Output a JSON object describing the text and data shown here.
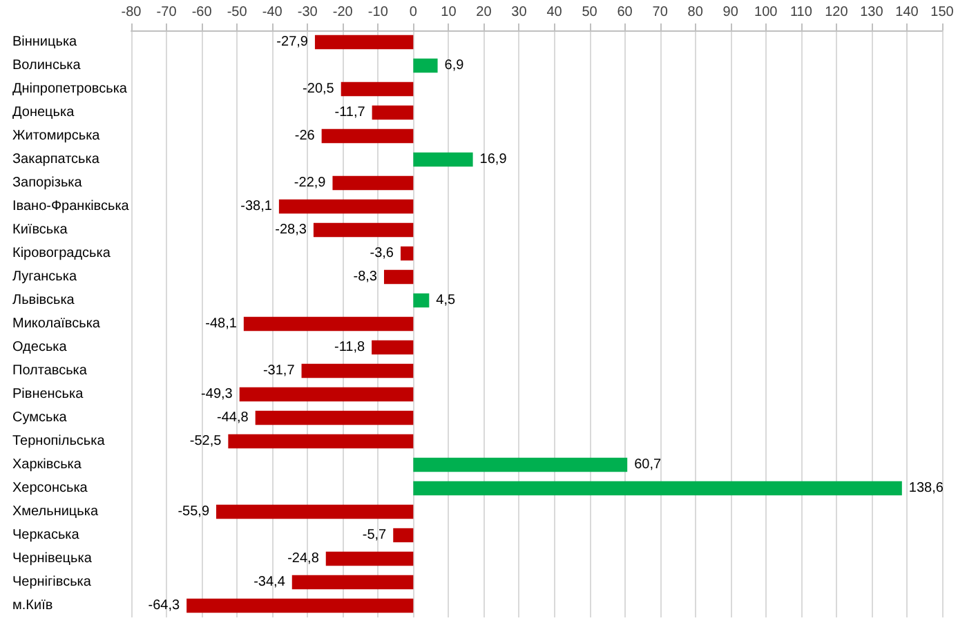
{
  "chart_data": {
    "type": "bar",
    "orientation": "horizontal",
    "categories": [
      "Вінницька",
      "Волинська",
      "Дніпропетровська",
      "Донецька",
      "Житомирська",
      "Закарпатська",
      "Запорізька",
      "Івано-Франківська",
      "Київська",
      "Кіровоградська",
      "Луганська",
      "Львівська",
      "Миколаївська",
      "Одеська",
      "Полтавська",
      "Рівненська",
      "Сумська",
      "Тернопільська",
      "Харківська",
      "Херсонська",
      "Хмельницька",
      "Черкаська",
      "Чернівецька",
      "Чернігівська",
      "м.Київ"
    ],
    "values": [
      -27.9,
      6.9,
      -20.5,
      -11.7,
      -26,
      16.9,
      -22.9,
      -38.1,
      -28.3,
      -3.6,
      -8.3,
      4.5,
      -48.1,
      -11.8,
      -31.7,
      -49.3,
      -44.8,
      -52.5,
      60.7,
      138.6,
      -55.9,
      -5.7,
      -24.8,
      -34.4,
      -64.3
    ],
    "value_labels": [
      "-27,9",
      "6,9",
      "-20,5",
      "-11,7",
      "-26",
      "16,9",
      "-22,9",
      "-38,1",
      "-28,3",
      "-3,6",
      "-8,3",
      "4,5",
      "-48,1",
      "-11,8",
      "-31,7",
      "-49,3",
      "-44,8",
      "-52,5",
      "60,7",
      "138,6",
      "-55,9",
      "-5,7",
      "-24,8",
      "-34,4",
      "-64,3"
    ],
    "colors": [
      "#c00000",
      "#00b050",
      "#c00000",
      "#c00000",
      "#c00000",
      "#00b050",
      "#c00000",
      "#c00000",
      "#c00000",
      "#c00000",
      "#c00000",
      "#00b050",
      "#c00000",
      "#c00000",
      "#c00000",
      "#c00000",
      "#c00000",
      "#c00000",
      "#00b050",
      "#00b050",
      "#c00000",
      "#c00000",
      "#c00000",
      "#c00000",
      "#c00000"
    ],
    "xlim": [
      -80,
      150
    ],
    "xticks": [
      -80,
      -70,
      -60,
      -50,
      -40,
      -30,
      -20,
      -10,
      0,
      10,
      20,
      30,
      40,
      50,
      60,
      70,
      80,
      90,
      100,
      110,
      120,
      130,
      140,
      150
    ],
    "grid": "x"
  }
}
